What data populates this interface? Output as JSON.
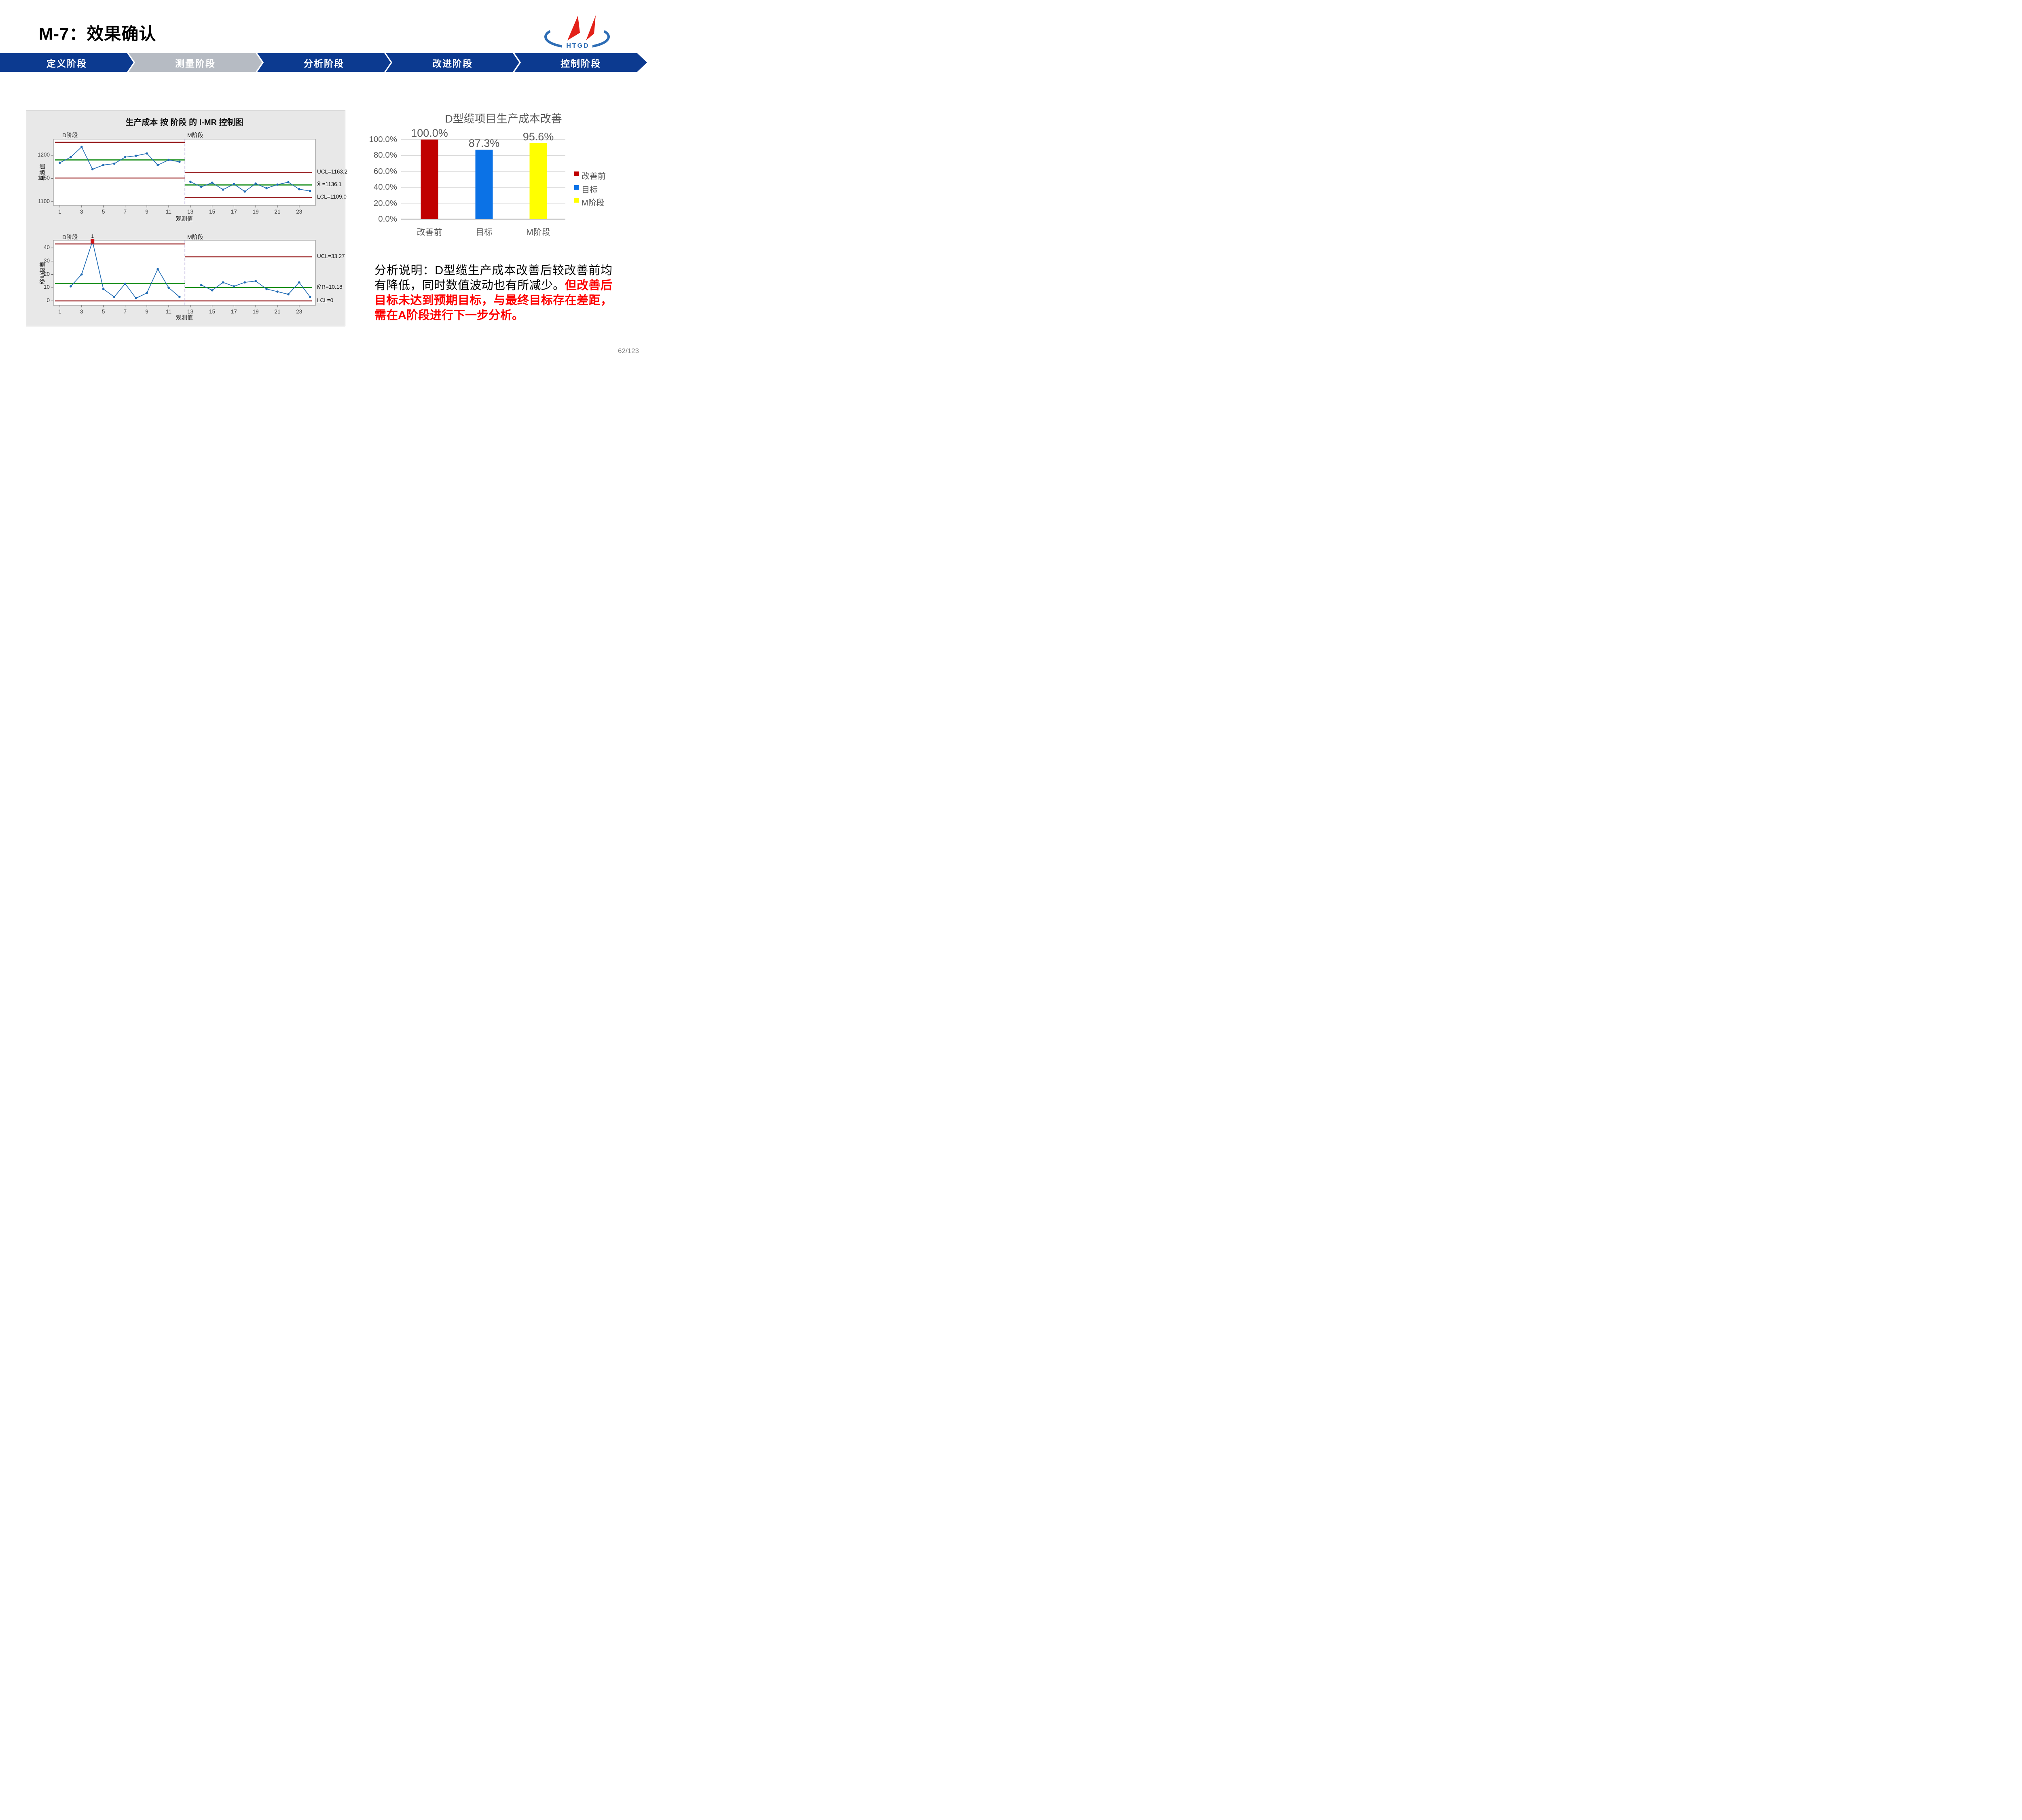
{
  "page": {
    "title": "M-7：效果确认",
    "page_number": "62/123",
    "background": "#ffffff"
  },
  "logo": {
    "text": "HTGD",
    "red": "#e32119",
    "blue": "#2d6db5"
  },
  "flow": {
    "active_index": 1,
    "stage_color": "#0c3a90",
    "active_color": "#b6bbc3",
    "stages": [
      {
        "label": "定义阶段"
      },
      {
        "label": "测量阶段"
      },
      {
        "label": "分析阶段"
      },
      {
        "label": "改进阶段"
      },
      {
        "label": "控制阶段"
      }
    ]
  },
  "chart_data": [
    {
      "type": "line",
      "name": "individuals-chart",
      "title": "生产成本 按 阶段 的 I-MR 控制图",
      "xlabel": "观测值",
      "ylabel": "单独值",
      "yticks": [
        1100,
        1150,
        1200
      ],
      "xticks": [
        1,
        3,
        5,
        7,
        9,
        11,
        13,
        15,
        17,
        19,
        21,
        23
      ],
      "ylim": [
        1094,
        1235
      ],
      "separator_x": 12.5,
      "stages": [
        {
          "name": "D阶段",
          "x_start": 1,
          "ucl": 1228,
          "cl": 1190,
          "lcl": 1151,
          "values": [
            1184,
            1196,
            1218,
            1170,
            1179,
            1182,
            1196,
            1199,
            1204,
            1179,
            1190,
            1186
          ]
        },
        {
          "name": "M阶段",
          "x_start": 13,
          "ucl": 1163.2,
          "cl": 1136.1,
          "lcl": 1109.0,
          "values": [
            1143,
            1132,
            1141,
            1126,
            1138,
            1122,
            1139,
            1129,
            1137,
            1142,
            1127,
            1123
          ]
        }
      ],
      "annotations": [
        "UCL=1163.2",
        "X̄ =1136.1",
        "LCL=1109.0"
      ]
    },
    {
      "type": "line",
      "name": "moving-range-chart",
      "xlabel": "观测值",
      "ylabel": "移动极差",
      "yticks": [
        0,
        10,
        20,
        30,
        40
      ],
      "xticks": [
        1,
        3,
        5,
        7,
        9,
        11,
        13,
        15,
        17,
        19,
        21,
        23
      ],
      "ylim": [
        -3.5,
        46
      ],
      "separator_x": 12.5,
      "stages": [
        {
          "name": "D阶段",
          "x_start": 2,
          "ucl": 43,
          "cl": 13.27,
          "lcl": 0,
          "values": [
            11,
            20,
            45,
            9,
            3,
            13,
            2,
            6,
            24,
            10,
            3
          ]
        },
        {
          "name": "M阶段",
          "x_start": 14,
          "ucl": 33.27,
          "cl": 10.18,
          "lcl": 0,
          "values": [
            12,
            8,
            14,
            11,
            14,
            15,
            9,
            7,
            5,
            14,
            3
          ]
        }
      ],
      "out_of_control": {
        "x": 4,
        "value": 45,
        "label": "1"
      },
      "annotations": [
        "UCL=33.27",
        "M̄R=10.18",
        "LCL=0"
      ]
    },
    {
      "type": "bar",
      "name": "cost-improvement",
      "title": "D型缆项目生产成本改善",
      "categories": [
        "改善前",
        "目标",
        "M阶段"
      ],
      "values": [
        100.0,
        87.3,
        95.6
      ],
      "value_labels": [
        "100.0%",
        "87.3%",
        "95.6%"
      ],
      "bar_colors": [
        "#c00000",
        "#0b72e6",
        "#ffff00"
      ],
      "yticks": [
        "0.0%",
        "20.0%",
        "40.0%",
        "60.0%",
        "80.0%",
        "100.0%"
      ],
      "ytick_values": [
        0,
        20,
        40,
        60,
        80,
        100
      ],
      "ylim": [
        0,
        100
      ],
      "legend": [
        {
          "label": "改善前",
          "color": "#c00000"
        },
        {
          "label": "目标",
          "color": "#0b72e6"
        },
        {
          "label": "M阶段",
          "color": "#ffff00"
        }
      ]
    }
  ],
  "imr_colors": {
    "control_limit": "#971b1e",
    "center_line": "#0e8a10",
    "series": "#1f6bb4",
    "out_of_control": "#d21418",
    "separator": "#8d7bc4",
    "figure_bg": "#e8e8e8"
  },
  "analysis": {
    "normal": "分析说明：D型缆生产成本改善后较改善前均有降低，同时数值波动也有所减少。",
    "highlight": "但改善后目标未达到预期目标，与最终目标存在差距，需在A阶段进行下一步分析。",
    "highlight_color": "#fe0000"
  }
}
